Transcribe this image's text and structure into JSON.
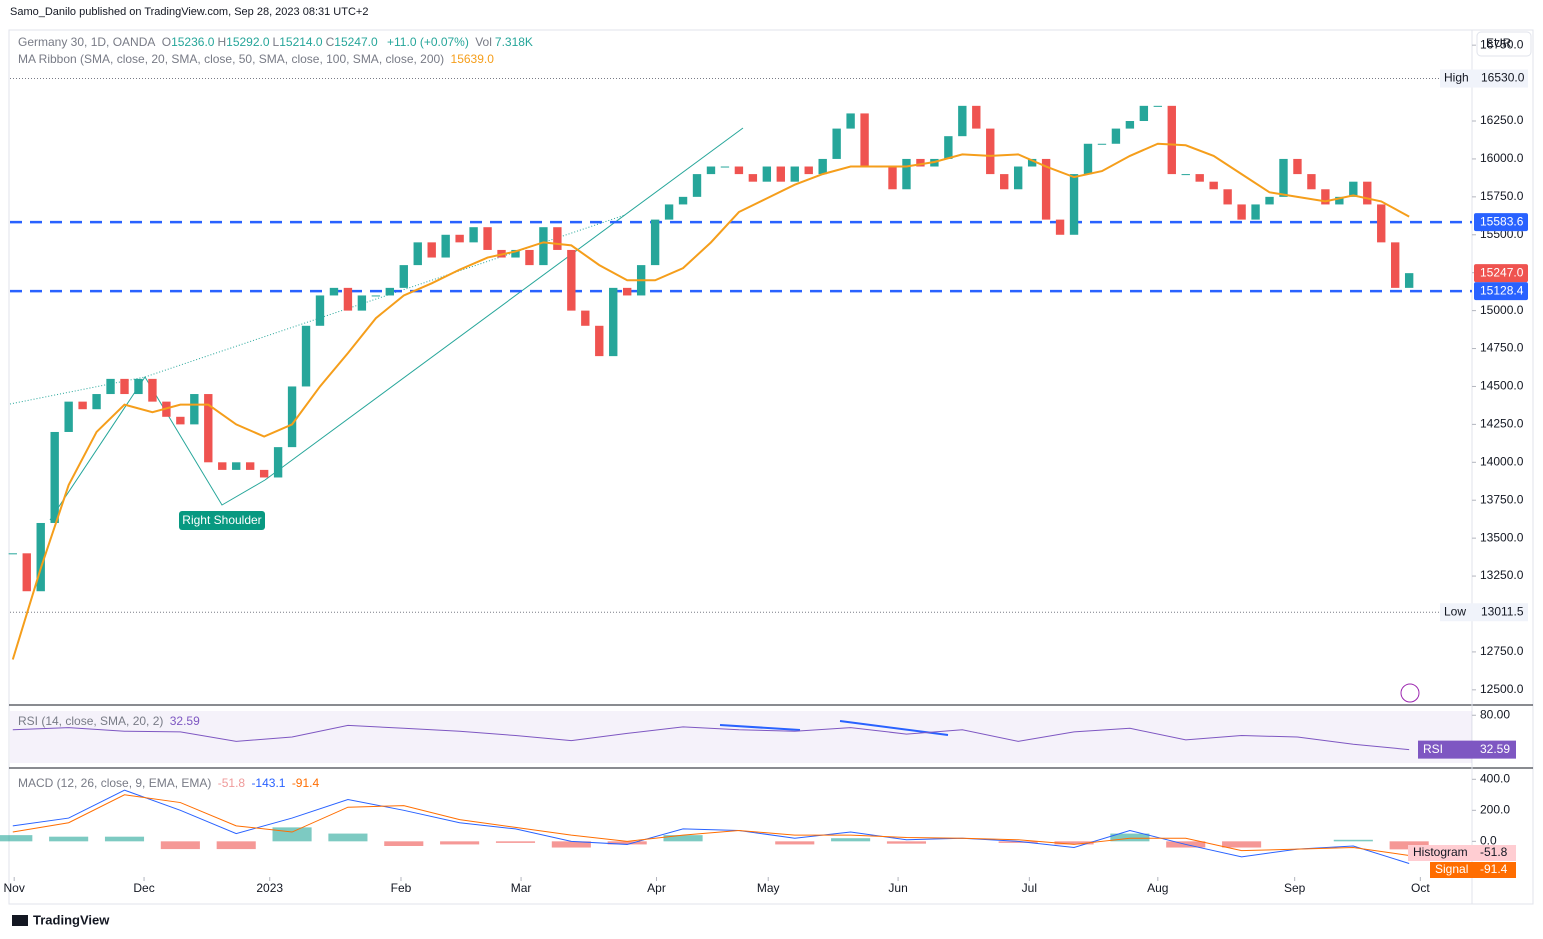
{
  "chart_data": {
    "type": "candlestick",
    "published": "Samo_Danilo published on TradingView.com, Sep 28, 2023 08:31 UTC+2",
    "currency": "EUR",
    "legend": {
      "symbol": "Germany 30, 1D, OANDA",
      "ohlc": [
        {
          "label": "O",
          "value": "15236.0"
        },
        {
          "label": "H",
          "value": "15292.0"
        },
        {
          "label": "L",
          "value": "15214.0"
        },
        {
          "label": "C",
          "value": "15247.0"
        }
      ],
      "change": "+11.0 (+0.07%)",
      "volume_label": "Vol",
      "volume": "7.318K"
    },
    "up_color": "#26a69a",
    "down_color": "#ef5350",
    "closes": [
      13400,
      13150,
      13600,
      14200,
      14400,
      14350,
      14450,
      14550,
      14450,
      14550,
      14400,
      14300,
      14250,
      14450,
      14000,
      13950,
      14000,
      13950,
      13900,
      14100,
      14500,
      14900,
      15100,
      15150,
      15000,
      15100,
      15100,
      15150,
      15300,
      15450,
      15350,
      15500,
      15450,
      15550,
      15400,
      15350,
      15400,
      15300,
      15550,
      15400,
      15000,
      14900,
      14700,
      15150,
      15100,
      15300,
      15600,
      15700,
      15750,
      15900,
      15950,
      15950,
      15900,
      15850,
      15950,
      15850,
      15950,
      15900,
      16000,
      16200,
      16300,
      15950,
      15950,
      15800,
      16000,
      15950,
      16000,
      16150,
      16350,
      16200,
      15900,
      15800,
      15950,
      16000,
      15600,
      15500,
      15900,
      16100,
      16100,
      16200,
      16250,
      16350,
      16350,
      15900,
      15900,
      15850,
      15800,
      15700,
      15600,
      15700,
      15750,
      16000,
      15900,
      15800,
      15700,
      15750,
      15850,
      15700,
      15450,
      15150,
      15247
    ],
    "ma": {
      "name": "MA Ribbon (SMA, close, 20, SMA, close, 50, SMA, close, 100, SMA, close, 200)",
      "last": "15639.0",
      "color": "#f59e1b",
      "x": [
        0,
        2,
        4,
        6,
        8,
        10,
        12,
        14,
        16,
        18,
        20,
        22,
        24,
        26,
        28,
        30,
        32,
        34,
        36,
        38,
        40,
        42,
        44,
        46,
        48,
        50,
        52,
        54,
        56,
        58,
        60,
        62,
        64,
        66,
        68,
        70,
        72,
        74,
        76,
        78,
        80,
        82,
        84,
        86,
        88,
        90,
        92,
        94,
        96,
        98,
        100
      ],
      "values": [
        12700,
        13300,
        13850,
        14200,
        14380,
        14330,
        14380,
        14380,
        14250,
        14170,
        14250,
        14500,
        14720,
        14950,
        15100,
        15180,
        15270,
        15350,
        15390,
        15450,
        15430,
        15300,
        15200,
        15200,
        15280,
        15450,
        15650,
        15740,
        15830,
        15900,
        15950,
        15950,
        15950,
        15980,
        16030,
        16020,
        16030,
        15950,
        15880,
        15920,
        16020,
        16100,
        16090,
        16020,
        15900,
        15780,
        15750,
        15720,
        15760,
        15720,
        15620
      ]
    },
    "levels": [
      {
        "value": 15583.6,
        "label": "15583.6",
        "color": "#2962ff"
      },
      {
        "value": 15128.4,
        "label": "15128.4",
        "color": "#2962ff"
      }
    ],
    "high": {
      "name": "High",
      "value": 16530,
      "label": "16530.0"
    },
    "low": {
      "name": "Low",
      "value": 13011.5,
      "label": "13011.5"
    },
    "last_price": {
      "value": 15247,
      "label": "15247.0"
    },
    "annotation": "Right Shoulder",
    "xlim": [
      -0.2,
      104.5
    ],
    "xticks": [
      {
        "value": 0.1,
        "label": "Nov"
      },
      {
        "value": 9.4,
        "label": "Dec"
      },
      {
        "value": 18.4,
        "label": "2023"
      },
      {
        "value": 27.8,
        "label": "Feb"
      },
      {
        "value": 36.4,
        "label": "Mar"
      },
      {
        "value": 46.1,
        "label": "Apr"
      },
      {
        "value": 54.1,
        "label": "May"
      },
      {
        "value": 63.4,
        "label": "Jun"
      },
      {
        "value": 72.8,
        "label": "Jul"
      },
      {
        "value": 82.0,
        "label": "Aug"
      },
      {
        "value": 91.8,
        "label": "Sep"
      },
      {
        "value": 100.8,
        "label": "Oct"
      }
    ],
    "ylim": [
      12400,
      16850
    ],
    "yticks": [
      {
        "value": 12500,
        "label": "12500.0"
      },
      {
        "value": 12750,
        "label": "12750.0"
      },
      {
        "value": 13000,
        "label": "13000.0"
      },
      {
        "value": 13250,
        "label": "13250.0"
      },
      {
        "value": 13500,
        "label": "13500.0"
      },
      {
        "value": 13750,
        "label": "13750.0"
      },
      {
        "value": 14000,
        "label": "14000.0"
      },
      {
        "value": 14250,
        "label": "14250.0"
      },
      {
        "value": 14500,
        "label": "14500.0"
      },
      {
        "value": 14750,
        "label": "14750.0"
      },
      {
        "value": 15000,
        "label": "15000.0"
      },
      {
        "value": 15250,
        "label": "15250.0"
      },
      {
        "value": 15500,
        "label": "15500.0"
      },
      {
        "value": 15750,
        "label": "15750.0"
      },
      {
        "value": 16000,
        "label": "16000.0"
      },
      {
        "value": 16250,
        "label": "16250.0"
      },
      {
        "value": 16500,
        "label": "16500.0"
      },
      {
        "value": 16750,
        "label": "16750.0"
      }
    ],
    "rsi": {
      "name": "RSI (14, close, SMA, 20, 2)",
      "short": "RSI",
      "color": "#7e57c2",
      "last": {
        "value": 32.59,
        "label": "32.59"
      },
      "x": [
        0,
        4,
        8,
        12,
        16,
        20,
        24,
        28,
        32,
        36,
        40,
        44,
        48,
        52,
        56,
        60,
        64,
        68,
        72,
        76,
        80,
        84,
        88,
        92,
        96,
        100
      ],
      "values": [
        60,
        63,
        58,
        57,
        44,
        50,
        66,
        62,
        58,
        52,
        45,
        55,
        64,
        60,
        58,
        63,
        54,
        60,
        44,
        57,
        62,
        46,
        52,
        50,
        40,
        32.59
      ],
      "ylim": [
        10,
        90
      ],
      "yticks": [
        {
          "value": 80,
          "label": "80.00"
        }
      ]
    },
    "macd": {
      "name": "MACD (12, 26, close, 9, EMA, EMA)",
      "macd_color": "#2962ff",
      "signal_color": "#ff6d00",
      "x": [
        0,
        4,
        8,
        12,
        16,
        20,
        24,
        28,
        32,
        36,
        40,
        44,
        48,
        52,
        56,
        60,
        64,
        68,
        72,
        76,
        80,
        84,
        88,
        92,
        96,
        100
      ],
      "macd": [
        100,
        150,
        330,
        200,
        50,
        150,
        270,
        200,
        120,
        80,
        0,
        -20,
        80,
        70,
        20,
        60,
        10,
        20,
        0,
        -40,
        70,
        -20,
        -100,
        -50,
        -30,
        -143.1
      ],
      "signal": [
        60,
        120,
        300,
        250,
        100,
        60,
        220,
        230,
        140,
        90,
        40,
        0,
        40,
        70,
        40,
        40,
        25,
        20,
        10,
        -20,
        20,
        20,
        -60,
        -50,
        -40,
        -91.4
      ],
      "histogram": [
        40,
        30,
        30,
        -50,
        -50,
        90,
        50,
        -30,
        -20,
        -10,
        -40,
        -20,
        40,
        0,
        -20,
        20,
        -15,
        0,
        -10,
        -20,
        50,
        -40,
        -40,
        0,
        10,
        -51.8
      ],
      "legend_values": [
        "-51.8",
        "-143.1",
        "-91.4"
      ],
      "histogram_name": "Histogram",
      "signal_name": "Signal",
      "ylim": [
        -230,
        460
      ],
      "yticks": [
        {
          "value": 0,
          "label": "0.0"
        },
        {
          "value": 200,
          "label": "200.0"
        },
        {
          "value": 400,
          "label": "400.0"
        }
      ]
    },
    "brand": "TradingView"
  }
}
